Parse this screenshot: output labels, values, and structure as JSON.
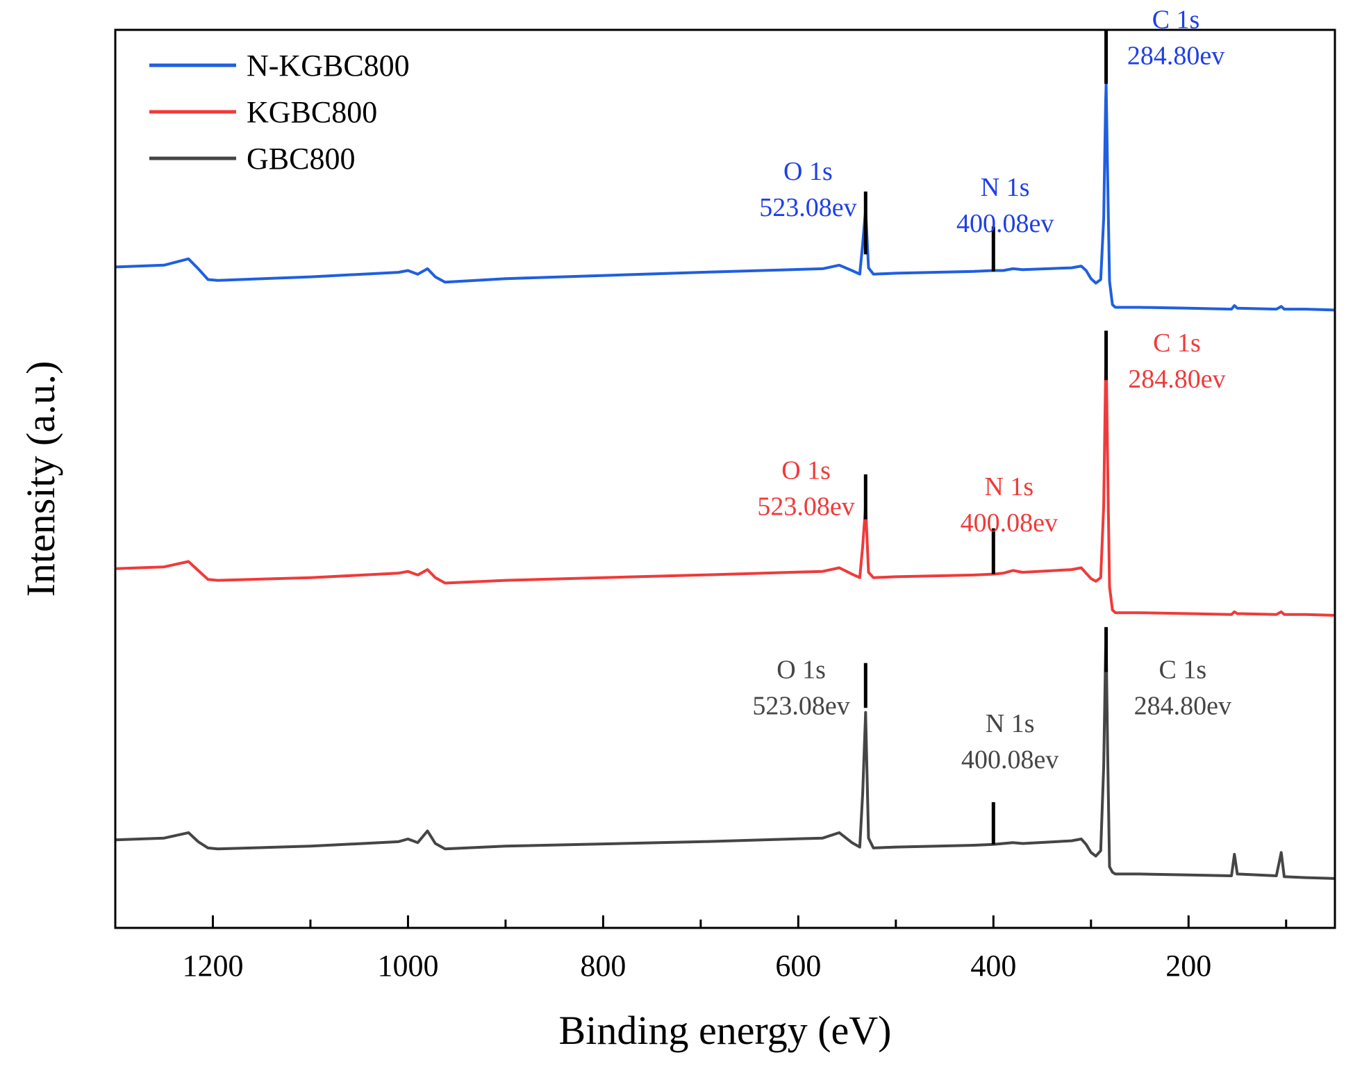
{
  "chart_data": {
    "type": "line",
    "title": "",
    "xlabel": "Binding energy (eV)",
    "ylabel": "Intensity (a.u.)",
    "xlim": [
      1300,
      50
    ],
    "ylim": [
      0,
      1000
    ],
    "x_reversed": true,
    "grid": false,
    "legend_position": "top-left",
    "x_ticks": [
      {
        "value": 1200,
        "label": "1200"
      },
      {
        "value": 1000,
        "label": "1000"
      },
      {
        "value": 800,
        "label": "800"
      },
      {
        "value": 600,
        "label": "600"
      },
      {
        "value": 400,
        "label": "400"
      },
      {
        "value": 200,
        "label": "200"
      }
    ],
    "x_minor_ticks": [
      1100,
      900,
      700,
      500,
      300,
      100
    ],
    "series": [
      {
        "name": "N-KGBC800",
        "color": "#1f5fe0",
        "x": [
          1300,
          1250,
          1225,
          1215,
          1205,
          1195,
          1100,
          1010,
          1000,
          990,
          980,
          972,
          962,
          900,
          700,
          575,
          558,
          545,
          537,
          534,
          531,
          528,
          523,
          500,
          420,
          400,
          390,
          380,
          370,
          320,
          310,
          305,
          300,
          295,
          290,
          287,
          285,
          284.5,
          283,
          281,
          278,
          275,
          250,
          200,
          156,
          153,
          150,
          110,
          105,
          102,
          80,
          50
        ],
        "values": [
          736,
          738,
          745,
          734,
          722,
          721,
          725,
          730,
          732,
          728,
          734,
          725,
          719,
          723,
          730,
          734,
          738,
          732,
          728,
          762,
          800,
          735,
          728,
          729,
          731,
          732,
          732,
          734,
          733,
          735,
          737,
          732,
          723,
          718,
          722,
          790,
          920,
          940,
          840,
          720,
          694,
          691,
          691,
          690,
          689,
          693,
          690,
          689,
          692,
          689,
          689,
          688
        ]
      },
      {
        "name": "KGBC800",
        "color": "#f03a3a",
        "x": [
          1300,
          1250,
          1225,
          1215,
          1205,
          1195,
          1100,
          1010,
          1000,
          990,
          980,
          972,
          962,
          900,
          700,
          575,
          558,
          545,
          537,
          534,
          531,
          528,
          523,
          500,
          420,
          400,
          390,
          380,
          370,
          320,
          310,
          305,
          300,
          295,
          290,
          287,
          285,
          284.5,
          283,
          281,
          278,
          275,
          250,
          200,
          156,
          153,
          150,
          110,
          105,
          102,
          80,
          50
        ],
        "values": [
          400,
          402,
          408,
          398,
          388,
          387,
          390,
          395,
          397,
          393,
          399,
          390,
          384,
          387,
          393,
          397,
          401,
          394,
          390,
          425,
          470,
          396,
          390,
          391,
          393,
          394,
          395,
          398,
          396,
          399,
          401,
          395,
          389,
          386,
          390,
          470,
          620,
          640,
          520,
          380,
          354,
          351,
          351,
          350,
          349,
          352,
          350,
          349,
          352,
          349,
          349,
          348
        ]
      },
      {
        "name": "GBC800",
        "color": "#454545",
        "x": [
          1300,
          1250,
          1225,
          1215,
          1205,
          1195,
          1100,
          1010,
          1000,
          990,
          980,
          972,
          962,
          900,
          700,
          575,
          558,
          545,
          537,
          534,
          531,
          528,
          523,
          500,
          420,
          400,
          390,
          380,
          370,
          320,
          310,
          305,
          300,
          295,
          290,
          287,
          285,
          284.5,
          283,
          281,
          278,
          275,
          250,
          200,
          156,
          153,
          150,
          110,
          105,
          102,
          80,
          50
        ],
        "values": [
          98,
          100,
          106,
          96,
          89,
          88,
          91,
          96,
          99,
          95,
          108,
          94,
          88,
          91,
          96,
          100,
          106,
          95,
          90,
          150,
          240,
          100,
          89,
          90,
          92,
          93,
          94,
          95,
          94,
          97,
          99,
          93,
          84,
          80,
          86,
          180,
          310,
          320,
          200,
          68,
          62,
          60,
          60,
          59,
          58,
          82,
          60,
          58,
          84,
          57,
          56,
          55
        ]
      }
    ],
    "peak_markers": [
      {
        "series": "N-KGBC800",
        "x": 531,
        "y_top": 820,
        "y_bottom": 750
      },
      {
        "series": "N-KGBC800",
        "x": 400,
        "y_top": 781,
        "y_bottom": 731
      },
      {
        "series": "N-KGBC800",
        "x": 284.5,
        "y_top": 1000,
        "y_bottom": 940
      },
      {
        "series": "KGBC800",
        "x": 531,
        "y_top": 505,
        "y_bottom": 455
      },
      {
        "series": "KGBC800",
        "x": 400,
        "y_top": 445,
        "y_bottom": 394
      },
      {
        "series": "KGBC800",
        "x": 284.5,
        "y_top": 665,
        "y_bottom": 610
      },
      {
        "series": "GBC800",
        "x": 531,
        "y_top": 295,
        "y_bottom": 245
      },
      {
        "series": "GBC800",
        "x": 400,
        "y_top": 140,
        "y_bottom": 93
      },
      {
        "series": "GBC800",
        "x": 284.5,
        "y_top": 335,
        "y_bottom": 285
      }
    ],
    "annotations": [
      {
        "series": "N-KGBC800",
        "color": "#1f3fe8",
        "x": 590,
        "y": 833,
        "lines": [
          "O 1s",
          "523.08ev"
        ]
      },
      {
        "series": "N-KGBC800",
        "color": "#1f3fe8",
        "x": 388,
        "y": 815,
        "lines": [
          "N 1s",
          "400.08ev"
        ]
      },
      {
        "series": "N-KGBC800",
        "color": "#1f3fe8",
        "x": 213,
        "y": 1002,
        "lines": [
          "C 1s",
          "284.80ev"
        ]
      },
      {
        "series": "KGBC800",
        "color": "#f03a3a",
        "x": 592,
        "y": 500,
        "lines": [
          "O 1s",
          "523.08ev"
        ]
      },
      {
        "series": "KGBC800",
        "color": "#f03a3a",
        "x": 384,
        "y": 482,
        "lines": [
          "N 1s",
          "400.08ev"
        ]
      },
      {
        "series": "KGBC800",
        "color": "#f03a3a",
        "x": 212,
        "y": 642,
        "lines": [
          "C 1s",
          "284.80ev"
        ]
      },
      {
        "series": "GBC800",
        "color": "#454545",
        "x": 597,
        "y": 278,
        "lines": [
          "O 1s",
          "523.08ev"
        ]
      },
      {
        "series": "GBC800",
        "color": "#454545",
        "x": 383,
        "y": 218,
        "lines": [
          "N 1s",
          "400.08ev"
        ]
      },
      {
        "series": "GBC800",
        "color": "#454545",
        "x": 206,
        "y": 278,
        "lines": [
          "C 1s",
          "284.80ev"
        ]
      }
    ]
  }
}
